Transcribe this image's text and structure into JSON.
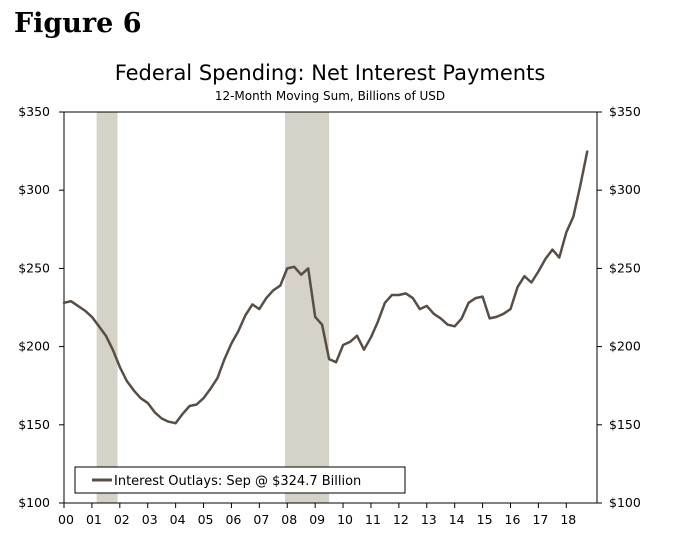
{
  "figure_label": "Figure 6",
  "chart_data": {
    "type": "line",
    "title": "Federal Spending: Net Interest Payments",
    "subtitle": "12-Month Moving Sum, Billions of USD",
    "xlabel": "",
    "ylabel": "",
    "x_range": [
      2000.0,
      2019.1
    ],
    "ylim": [
      100,
      350
    ],
    "y_ticks": [
      100,
      150,
      200,
      250,
      300,
      350
    ],
    "y_tick_labels": [
      "$100",
      "$150",
      "$200",
      "$250",
      "$300",
      "$350"
    ],
    "x_ticks": [
      2000,
      2001,
      2002,
      2003,
      2004,
      2005,
      2006,
      2007,
      2008,
      2009,
      2010,
      2011,
      2012,
      2013,
      2014,
      2015,
      2016,
      2017,
      2018
    ],
    "x_tick_labels": [
      "00",
      "01",
      "02",
      "03",
      "04",
      "05",
      "06",
      "07",
      "08",
      "09",
      "10",
      "11",
      "12",
      "13",
      "14",
      "15",
      "16",
      "17",
      "18"
    ],
    "recessions": [
      {
        "start": 2001.17,
        "end": 2001.92
      },
      {
        "start": 2007.92,
        "end": 2009.5
      }
    ],
    "legend": {
      "label": "Interest Outlays: Sep @ $324.7 Billion",
      "position": "bottom-left"
    },
    "series": [
      {
        "name": "Interest Outlays",
        "color": "#584e46",
        "x": [
          2000.0,
          2000.25,
          2000.5,
          2000.75,
          2001.0,
          2001.25,
          2001.5,
          2001.75,
          2002.0,
          2002.25,
          2002.5,
          2002.75,
          2003.0,
          2003.25,
          2003.5,
          2003.75,
          2004.0,
          2004.25,
          2004.5,
          2004.75,
          2005.0,
          2005.25,
          2005.5,
          2005.75,
          2006.0,
          2006.25,
          2006.5,
          2006.75,
          2007.0,
          2007.25,
          2007.5,
          2007.75,
          2008.0,
          2008.25,
          2008.5,
          2008.75,
          2009.0,
          2009.25,
          2009.5,
          2009.75,
          2010.0,
          2010.25,
          2010.5,
          2010.75,
          2011.0,
          2011.25,
          2011.5,
          2011.75,
          2012.0,
          2012.25,
          2012.5,
          2012.75,
          2013.0,
          2013.25,
          2013.5,
          2013.75,
          2014.0,
          2014.25,
          2014.5,
          2014.75,
          2015.0,
          2015.25,
          2015.5,
          2015.75,
          2016.0,
          2016.25,
          2016.5,
          2016.75,
          2017.0,
          2017.25,
          2017.5,
          2017.75,
          2018.0,
          2018.25,
          2018.5,
          2018.75
        ],
        "values": [
          228,
          229,
          226,
          223,
          219,
          213,
          207,
          198,
          187,
          178,
          172,
          167,
          164,
          158,
          154,
          152,
          151,
          157,
          162,
          163,
          167,
          173,
          180,
          192,
          202,
          210,
          220,
          227,
          224,
          231,
          236,
          239,
          250,
          251,
          246,
          250,
          219,
          214,
          192,
          190,
          201,
          203,
          207,
          198,
          206,
          216,
          228,
          233,
          233,
          234,
          231,
          224,
          226,
          221,
          218,
          214,
          213,
          218,
          228,
          231,
          232,
          218,
          219,
          221,
          224,
          238,
          245,
          241,
          248,
          256,
          262,
          257,
          273,
          283,
          303,
          324.7
        ]
      }
    ]
  }
}
